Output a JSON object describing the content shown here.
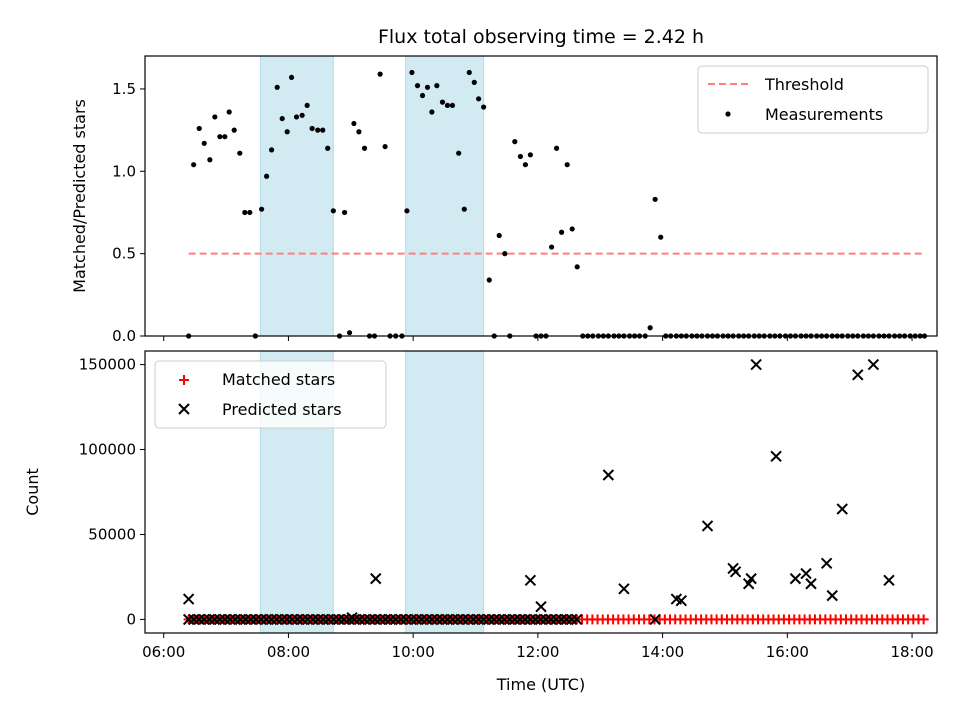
{
  "title": "Flux total observing time = 2.42 h",
  "colors": {
    "threshold": "#ff7f7f",
    "measurements": "#000000",
    "matched": "#ff0000",
    "predicted": "#000000",
    "span": "#add8e6"
  },
  "chart_data": [
    {
      "type": "scatter",
      "ylabel": "Matched/Predicted stars",
      "xlim": [
        5.7,
        18.4
      ],
      "ylim": [
        0,
        1.7
      ],
      "yticks": [
        0,
        0.5,
        1.0,
        1.5
      ],
      "ytick_labels": [
        "0.0",
        "0.5",
        "1.0",
        "1.5"
      ],
      "legend": {
        "placement": "top-right",
        "entries": [
          "Threshold",
          "Measurements"
        ]
      },
      "spans": [
        [
          7.55,
          8.72
        ],
        [
          9.88,
          11.13
        ]
      ],
      "threshold": {
        "name": "Threshold",
        "value": 0.5,
        "x": [
          6.4,
          18.2
        ]
      },
      "series": [
        {
          "name": "Measurements",
          "x": [
            6.4,
            6.48,
            6.57,
            6.65,
            6.74,
            6.82,
            6.9,
            6.98,
            7.05,
            7.13,
            7.22,
            7.3,
            7.38,
            7.47,
            7.57,
            7.65,
            7.73,
            7.82,
            7.9,
            7.98,
            8.05,
            8.13,
            8.22,
            8.3,
            8.38,
            8.47,
            8.55,
            8.63,
            8.72,
            8.82,
            8.9,
            8.98,
            9.05,
            9.13,
            9.22,
            9.3,
            9.38,
            9.47,
            9.55,
            9.63,
            9.72,
            9.82,
            9.9,
            9.98,
            10.07,
            10.15,
            10.23,
            10.3,
            10.38,
            10.47,
            10.55,
            10.63,
            10.73,
            10.82,
            10.9,
            10.98,
            11.05,
            11.13,
            11.22,
            11.3,
            11.38,
            11.47,
            11.55,
            11.63,
            11.72,
            11.8,
            11.88,
            11.97,
            12.05,
            12.13,
            12.22,
            12.3,
            12.38,
            12.47,
            12.55,
            12.63
          ],
          "y": [
            0,
            1.04,
            1.26,
            1.17,
            1.07,
            1.33,
            1.21,
            1.21,
            1.36,
            1.25,
            1.11,
            0.75,
            0.75,
            0,
            0.77,
            0.97,
            1.13,
            1.51,
            1.32,
            1.24,
            1.57,
            1.33,
            1.34,
            1.4,
            1.26,
            1.25,
            1.25,
            1.14,
            0.76,
            0,
            0.75,
            0.02,
            1.29,
            1.24,
            1.14,
            0,
            0,
            1.59,
            1.15,
            0,
            0,
            0,
            0.76,
            1.6,
            1.52,
            1.46,
            1.51,
            1.36,
            1.52,
            1.42,
            1.4,
            1.4,
            1.11,
            0.77,
            1.6,
            1.54,
            1.44,
            1.39,
            0.34,
            0,
            0.61,
            0.5,
            0,
            1.18,
            1.09,
            1.04,
            1.1,
            0,
            0,
            0,
            0.54,
            1.14,
            0.63,
            1.04,
            0.65,
            0.42
          ]
        },
        {
          "name": "Measurements",
          "x": [
            12.72,
            12.8,
            12.88,
            12.97,
            13.05,
            13.13,
            13.22,
            13.3,
            13.38,
            13.47,
            13.55,
            13.63,
            13.72,
            13.8,
            13.88,
            13.97,
            14.05,
            14.13,
            14.22,
            14.3,
            14.38,
            14.47,
            14.55,
            14.63,
            14.72,
            14.8,
            14.88,
            14.97,
            15.05,
            15.13,
            15.22,
            15.3,
            15.38,
            15.47,
            15.55,
            15.63,
            15.72,
            15.8,
            15.88,
            15.97,
            16.05,
            16.13,
            16.22,
            16.3,
            16.38,
            16.47,
            16.55,
            16.63,
            16.72,
            16.8,
            16.88,
            16.97,
            17.05,
            17.13,
            17.22,
            17.3,
            17.38,
            17.47,
            17.55,
            17.63,
            17.72,
            17.8,
            17.88,
            17.97,
            18.05,
            18.13,
            18.2
          ],
          "y": [
            0,
            0,
            0,
            0,
            0,
            0,
            0,
            0,
            0,
            0,
            0,
            0,
            0,
            0.05,
            0.83,
            0.6,
            0,
            0,
            0,
            0,
            0,
            0,
            0,
            0,
            0,
            0,
            0,
            0,
            0,
            0,
            0,
            0,
            0,
            0,
            0,
            0,
            0,
            0,
            0,
            0,
            0,
            0,
            0,
            0,
            0,
            0,
            0,
            0,
            0,
            0,
            0,
            0,
            0,
            0,
            0,
            0,
            0,
            0,
            0,
            0,
            0,
            0,
            0,
            0,
            0,
            0,
            0
          ]
        }
      ]
    },
    {
      "type": "scatter",
      "xlabel": "Time (UTC)",
      "ylabel": "Count",
      "xlim": [
        5.7,
        18.4
      ],
      "ylim": [
        -8000,
        158000
      ],
      "yticks": [
        0,
        50000,
        100000,
        150000
      ],
      "ytick_labels": [
        "0",
        "50000",
        "100000",
        "150000"
      ],
      "xticks": [
        6,
        8,
        10,
        12,
        14,
        16,
        18
      ],
      "xtick_labels": [
        "06:00",
        "08:00",
        "10:00",
        "12:00",
        "14:00",
        "16:00",
        "18:00"
      ],
      "legend": {
        "placement": "top-left",
        "entries": [
          "Matched stars",
          "Predicted stars"
        ]
      },
      "spans": [
        [
          7.55,
          8.72
        ],
        [
          9.88,
          11.13
        ]
      ],
      "series": [
        {
          "name": "Matched stars",
          "marker": "plus",
          "x_range": [
            6.4,
            18.2
          ],
          "x_step": 0.083,
          "value": 0
        },
        {
          "name": "Predicted stars",
          "marker": "x",
          "x": [
            6.4,
            9.02,
            9.4,
            11.88,
            12.05,
            13.13,
            13.38,
            13.88,
            14.22,
            14.3,
            14.72,
            15.13,
            15.17,
            15.38,
            15.42,
            15.5,
            15.82,
            16.13,
            16.3,
            16.38,
            16.63,
            16.72,
            16.88,
            17.13,
            17.38,
            17.63
          ],
          "y": [
            12000,
            1000,
            24000,
            23000,
            7500,
            85000,
            18000,
            0,
            12000,
            11000,
            55000,
            30000,
            28000,
            21000,
            24000,
            150000,
            96000,
            24000,
            27000,
            21000,
            33000,
            14000,
            65000,
            144000,
            150000,
            23000
          ],
          "dense_x_range": [
            6.4,
            12.63
          ],
          "dense_value": 0
        }
      ]
    }
  ]
}
